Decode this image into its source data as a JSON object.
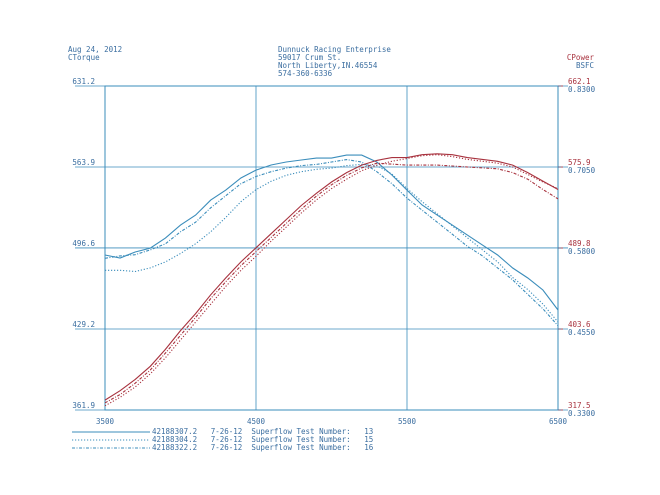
{
  "chart_data": {
    "type": "line",
    "date": "Aug 24, 2012",
    "title": "Dunnuck Racing Enterprise",
    "subtitle": [
      "59017 Crum St.",
      "North Liberty,IN.46554",
      "574-360-6336"
    ],
    "y_label": "CTorque",
    "y2_label": "CPower",
    "y3_label": "BSFC",
    "x": [
      3500,
      3600,
      3700,
      3800,
      3900,
      4000,
      4100,
      4200,
      4300,
      4400,
      4500,
      4600,
      4700,
      4800,
      4900,
      5000,
      5100,
      5200,
      5300,
      5400,
      5500,
      5600,
      5700,
      5800,
      5900,
      6000,
      6100,
      6200,
      6300,
      6400,
      6500
    ],
    "xlim": [
      3500,
      6500
    ],
    "xticks": [
      3500,
      4500,
      5500,
      6500
    ],
    "ylim": [
      361.9,
      631.2
    ],
    "yticks": [
      361.9,
      429.2,
      496.6,
      563.9,
      631.2
    ],
    "y2lim": [
      317.5,
      662.1
    ],
    "y2ticks": [
      317.5,
      403.6,
      489.8,
      575.9,
      662.1
    ],
    "y3lim": [
      0.33,
      0.83
    ],
    "y3ticks": [
      {
        "value": 0.33,
        "label": "0.3300"
      },
      {
        "value": 0.455,
        "label": "0.4550"
      },
      {
        "value": 0.58,
        "label": "0.5800"
      },
      {
        "value": 0.705,
        "label": "0.7050"
      },
      {
        "value": 0.83,
        "label": "0.8300"
      }
    ],
    "grid": true,
    "legend": [
      {
        "label": "42188307.2   7-26-12  Superflow Test Number:   13",
        "style": "solid"
      },
      {
        "label": "42188304.2   7-26-12  Superflow Test Number:   15",
        "style": "dotted"
      },
      {
        "label": "42188322.2   7-26-12  Superflow Test Number:   16",
        "style": "dashdot"
      }
    ],
    "series": [
      {
        "color": "#3b8dbb",
        "style": "solid",
        "values": [
          490.7,
          488.2,
          493.2,
          496.5,
          504.8,
          515.6,
          523.9,
          536.4,
          544.7,
          554.7,
          561.3,
          565.5,
          568.0,
          569.7,
          571.3,
          571.3,
          573.8,
          573.8,
          568.0,
          557.2,
          544.7,
          532.3,
          523.9,
          515.6,
          507.3,
          499.0,
          490.7,
          479.9,
          471.6,
          461.6,
          445.0
        ]
      },
      {
        "color": "#3b8dbb",
        "style": "dotted",
        "values": [
          478,
          478,
          477,
          480,
          485,
          492,
          500,
          510,
          522,
          535,
          545,
          552,
          557,
          560,
          562,
          563,
          565,
          566,
          565,
          558,
          546,
          535,
          525,
          515,
          505,
          495,
          485,
          472,
          462,
          450,
          435
        ]
      },
      {
        "color": "#3b8dbb",
        "style": "dashdot",
        "values": [
          488,
          490,
          491,
          495,
          500,
          510,
          518,
          530,
          540,
          550,
          556,
          560,
          563,
          565,
          566,
          568,
          570,
          568,
          560,
          550,
          538,
          528,
          518,
          508,
          498,
          490,
          480,
          470,
          458,
          446,
          432
        ]
      },
      {
        "color": "#a8323e",
        "style": "solid",
        "axis": "y2",
        "values": [
          328,
          338,
          350,
          364,
          382,
          402,
          420,
          440,
          458,
          475,
          490,
          505,
          520,
          535,
          548,
          560,
          570,
          578,
          583,
          586,
          586,
          589,
          590,
          589,
          586,
          584,
          582,
          578,
          570,
          561,
          552
        ]
      },
      {
        "color": "#a8323e",
        "style": "dotted",
        "axis": "y2",
        "values": [
          322,
          331,
          342,
          356,
          373,
          392,
          411,
          430,
          449,
          466,
          481,
          497,
          512,
          527,
          541,
          553,
          563,
          572,
          578,
          582,
          585,
          588,
          589,
          587,
          584,
          582,
          580,
          576,
          568,
          560,
          553
        ]
      },
      {
        "color": "#a8323e",
        "style": "dashdot",
        "axis": "y2",
        "values": [
          325,
          334,
          346,
          360,
          378,
          397,
          416,
          436,
          454,
          471,
          486,
          501,
          516,
          531,
          545,
          557,
          567,
          575,
          580,
          579,
          578,
          578,
          578,
          577,
          576,
          575,
          574,
          570,
          563,
          552,
          542
        ]
      }
    ]
  }
}
